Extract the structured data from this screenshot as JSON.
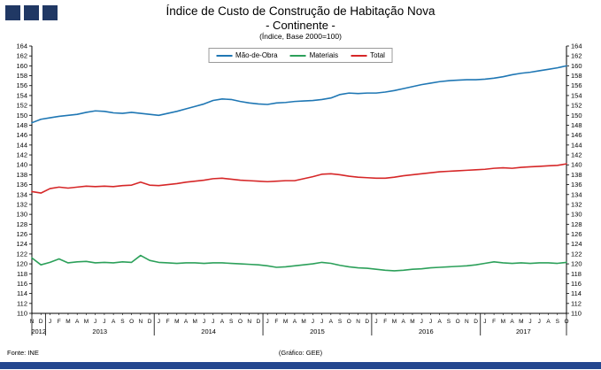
{
  "header": {
    "title": "Índice de Custo de Construção de Habitação Nova",
    "subtitle": "- Continente -",
    "note": "(Índice, Base 2000=100)"
  },
  "footer": {
    "source": "Fonte: INE",
    "credit": "(Gráfico: GEE)"
  },
  "colors": {
    "logo_square": "#203864",
    "bottom_bar": "#24478f",
    "axis": "#000000"
  },
  "chart_data": {
    "type": "line",
    "title": "Índice de Custo de Construção de Habitação Nova - Continente - (Índice, Base 2000=100)",
    "xlabel": "",
    "ylabel": "",
    "ylim": [
      110,
      164
    ],
    "ytick_step": 2,
    "grid": false,
    "legend_position": "top-center",
    "x_labels": [
      "N",
      "D",
      "J",
      "F",
      "M",
      "A",
      "M",
      "J",
      "J",
      "A",
      "S",
      "O",
      "N",
      "D",
      "J",
      "F",
      "M",
      "A",
      "M",
      "J",
      "J",
      "A",
      "S",
      "O",
      "N",
      "D",
      "J",
      "F",
      "M",
      "A",
      "M",
      "J",
      "J",
      "A",
      "S",
      "O",
      "N",
      "D",
      "J",
      "F",
      "M",
      "A",
      "M",
      "J",
      "J",
      "A",
      "S",
      "O",
      "N",
      "D",
      "J",
      "F",
      "M",
      "A",
      "M",
      "J",
      "J",
      "A",
      "S",
      "O"
    ],
    "years": [
      {
        "label": "2012",
        "start": 0,
        "count": 2
      },
      {
        "label": "2013",
        "start": 2,
        "count": 12
      },
      {
        "label": "2014",
        "start": 14,
        "count": 12
      },
      {
        "label": "2015",
        "start": 26,
        "count": 12
      },
      {
        "label": "2016",
        "start": 38,
        "count": 12
      },
      {
        "label": "2017",
        "start": 50,
        "count": 10
      }
    ],
    "series": [
      {
        "name": "Mão-de-Obra",
        "color": "#1f77b4",
        "values": [
          148.5,
          149.2,
          149.5,
          149.8,
          150.0,
          150.2,
          150.6,
          150.9,
          150.8,
          150.5,
          150.4,
          150.6,
          150.4,
          150.2,
          150.0,
          150.4,
          150.8,
          151.3,
          151.8,
          152.3,
          153.0,
          153.3,
          153.2,
          152.8,
          152.5,
          152.3,
          152.2,
          152.5,
          152.6,
          152.8,
          152.9,
          153.0,
          153.2,
          153.5,
          154.2,
          154.5,
          154.4,
          154.5,
          154.5,
          154.7,
          155.0,
          155.4,
          155.8,
          156.2,
          156.5,
          156.8,
          157.0,
          157.1,
          157.2,
          157.2,
          157.3,
          157.5,
          157.8,
          158.2,
          158.5,
          158.7,
          159.0,
          159.3,
          159.6,
          160.0
        ]
      },
      {
        "name": "Materiais",
        "color": "#2ca05a",
        "values": [
          121.2,
          119.8,
          120.3,
          121.0,
          120.2,
          120.4,
          120.5,
          120.2,
          120.3,
          120.2,
          120.4,
          120.3,
          121.7,
          120.7,
          120.3,
          120.2,
          120.1,
          120.2,
          120.2,
          120.1,
          120.2,
          120.2,
          120.1,
          120.0,
          119.9,
          119.8,
          119.6,
          119.3,
          119.4,
          119.6,
          119.8,
          120.0,
          120.3,
          120.1,
          119.7,
          119.4,
          119.2,
          119.1,
          118.9,
          118.7,
          118.6,
          118.7,
          118.9,
          119.0,
          119.2,
          119.3,
          119.4,
          119.5,
          119.6,
          119.8,
          120.1,
          120.4,
          120.2,
          120.1,
          120.2,
          120.1,
          120.2,
          120.2,
          120.1,
          120.3
        ]
      },
      {
        "name": "Total",
        "color": "#d62728",
        "values": [
          134.6,
          134.3,
          135.2,
          135.5,
          135.3,
          135.5,
          135.7,
          135.6,
          135.7,
          135.6,
          135.8,
          135.9,
          136.5,
          135.9,
          135.8,
          136.0,
          136.2,
          136.5,
          136.7,
          136.9,
          137.2,
          137.3,
          137.1,
          136.9,
          136.8,
          136.7,
          136.6,
          136.7,
          136.8,
          136.8,
          137.2,
          137.6,
          138.1,
          138.2,
          138.0,
          137.7,
          137.5,
          137.4,
          137.3,
          137.3,
          137.5,
          137.8,
          138.0,
          138.2,
          138.4,
          138.6,
          138.7,
          138.8,
          138.9,
          139.0,
          139.1,
          139.3,
          139.4,
          139.3,
          139.5,
          139.6,
          139.7,
          139.8,
          139.9,
          140.2
        ]
      }
    ]
  }
}
